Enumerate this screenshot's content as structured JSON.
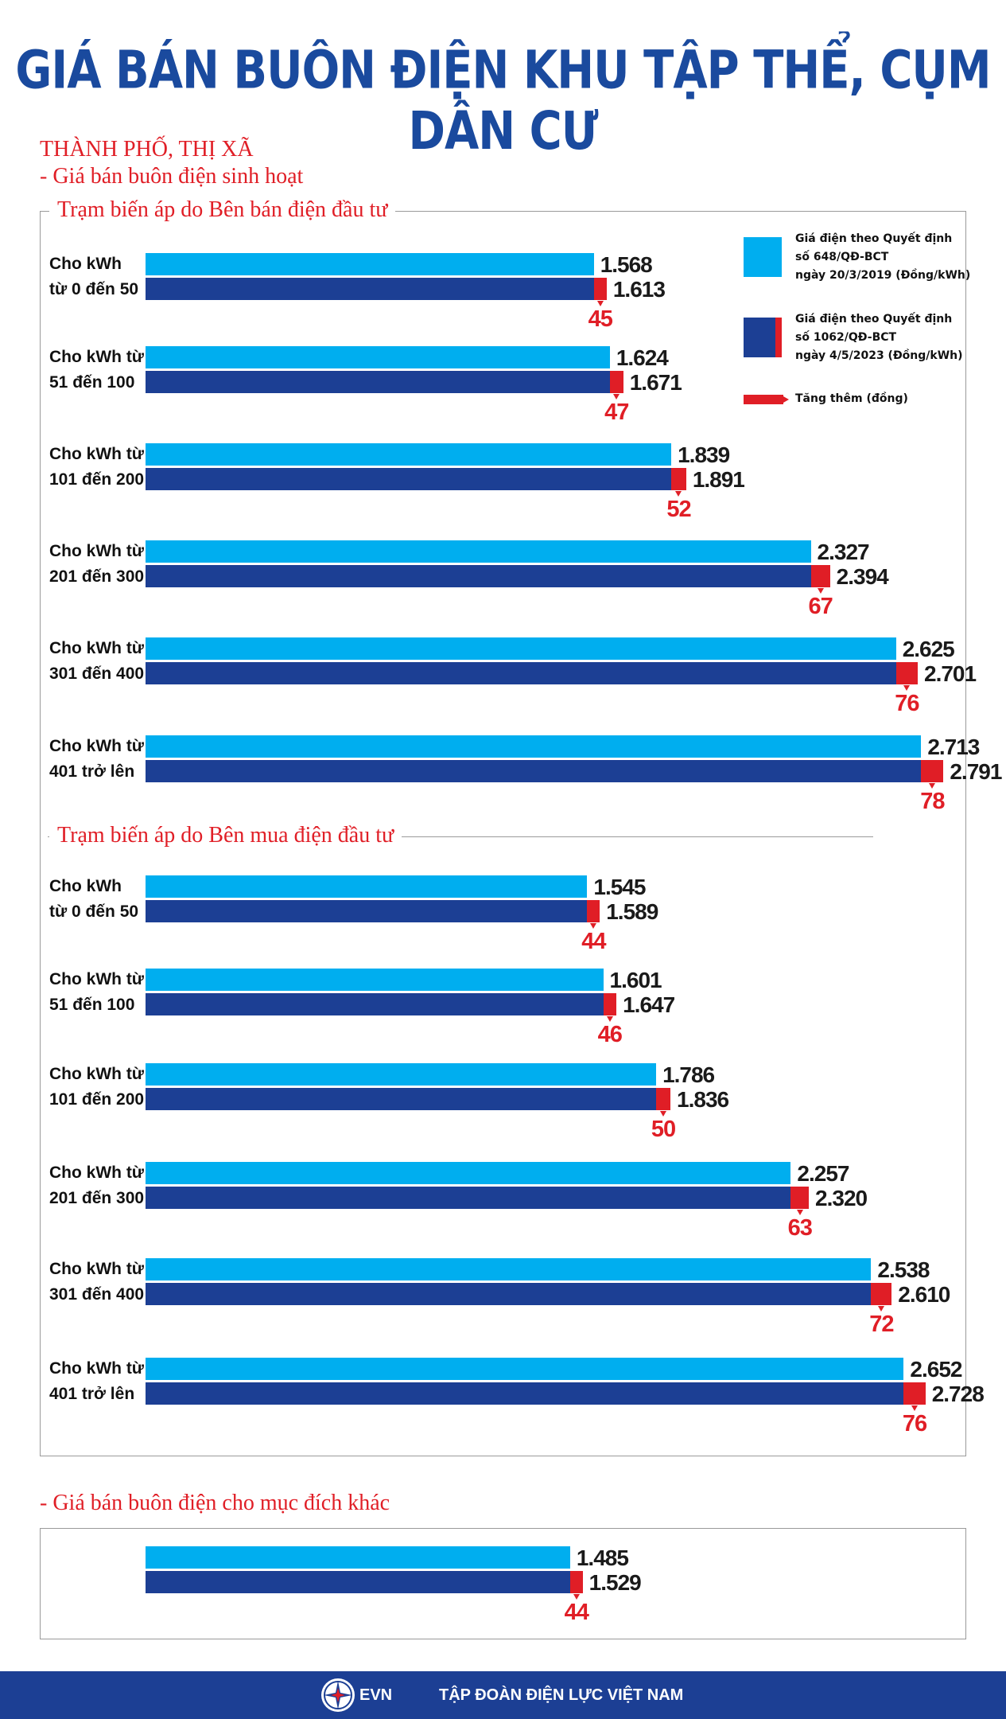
{
  "title": "GIÁ BÁN BUÔN ĐIỆN KHU TẬP THỂ, CỤM DÂN CƯ",
  "area": "THÀNH PHỐ, THỊ XÃ",
  "sub_domestic": "- Giá bán buôn điện sinh hoạt",
  "sub_other": "- Giá bán buôn điện cho mục đích khác",
  "legend": {
    "old": [
      "Giá điện theo Quyết định",
      "số 648/QĐ-BCT",
      "ngày 20/3/2019 (Đồng/kWh)"
    ],
    "new": [
      "Giá điện theo Quyết định",
      "số 1062/QĐ-BCT",
      "ngày 4/5/2023 (Đồng/kWh)"
    ],
    "increase": "Tăng thêm (đồng)"
  },
  "colors": {
    "old": "#00aeef",
    "new": "#1c3f94",
    "increase": "#e01e26",
    "title": "#1a4a9e"
  },
  "footer": {
    "brand": "EVN",
    "org": "TẬP ĐOÀN ĐIỆN LỰC VIỆT NAM",
    "logo_icon": "evn-star-logo-icon"
  },
  "chart_data": [
    {
      "type": "bar",
      "title": "Trạm biến áp do Bên bán điện đầu tư",
      "categories": [
        [
          "Cho kWh",
          "từ 0 đến 50"
        ],
        [
          "Cho kWh từ",
          "51 đến 100"
        ],
        [
          "Cho kWh từ",
          "101 đến 200"
        ],
        [
          "Cho kWh từ",
          "201 đến 300"
        ],
        [
          "Cho kWh từ",
          "301 đến 400"
        ],
        [
          "Cho kWh từ",
          "401 trở lên"
        ]
      ],
      "series": [
        {
          "values": [
            1568,
            1624,
            1839,
            2327,
            2625,
            2713
          ],
          "labels": [
            "1.568",
            "1.624",
            "1.839",
            "2.327",
            "2.625",
            "2.713"
          ]
        },
        {
          "values": [
            1613,
            1671,
            1891,
            2394,
            2701,
            2791
          ],
          "labels": [
            "1.613",
            "1.671",
            "1.891",
            "2.394",
            "2.701",
            "2.791"
          ]
        },
        {
          "values": [
            45,
            47,
            52,
            67,
            76,
            78
          ],
          "labels": [
            "45",
            "47",
            "52",
            "67",
            "76",
            "78"
          ]
        }
      ]
    },
    {
      "type": "bar",
      "title": "Trạm biến áp do Bên mua điện đầu tư",
      "categories": [
        [
          "Cho kWh",
          "từ 0 đến 50"
        ],
        [
          "Cho kWh từ",
          "51 đến 100"
        ],
        [
          "Cho kWh từ",
          "101 đến 200"
        ],
        [
          "Cho kWh từ",
          "201 đến 300"
        ],
        [
          "Cho kWh từ",
          "301 đến 400"
        ],
        [
          "Cho kWh từ",
          "401 trở lên"
        ]
      ],
      "series": [
        {
          "values": [
            1545,
            1601,
            1786,
            2257,
            2538,
            2652
          ],
          "labels": [
            "1.545",
            "1.601",
            "1.786",
            "2.257",
            "2.538",
            "2.652"
          ]
        },
        {
          "values": [
            1589,
            1647,
            1836,
            2320,
            2610,
            2728
          ],
          "labels": [
            "1.589",
            "1.647",
            "1.836",
            "2.320",
            "2.610",
            "2.728"
          ]
        },
        {
          "values": [
            44,
            46,
            50,
            63,
            72,
            76
          ],
          "labels": [
            "44",
            "46",
            "50",
            "63",
            "72",
            "76"
          ]
        }
      ]
    },
    {
      "type": "bar",
      "title": "",
      "categories": [
        [
          "",
          ""
        ]
      ],
      "series": [
        {
          "values": [
            1485
          ],
          "labels": [
            "1.485"
          ]
        },
        {
          "values": [
            1529
          ],
          "labels": [
            "1.529"
          ]
        },
        {
          "values": [
            44
          ],
          "labels": [
            "44"
          ]
        }
      ]
    }
  ]
}
